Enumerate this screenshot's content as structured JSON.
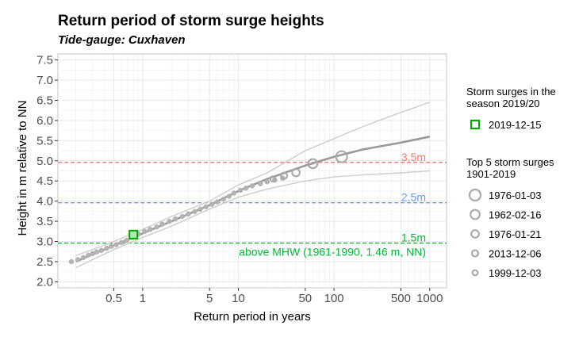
{
  "chart_data": {
    "type": "scatter",
    "title": "Return period of storm surge heights",
    "subtitle": "Tide-gauge: Cuxhaven",
    "xlabel": "Return period in years",
    "ylabel": "Height in m relative to NN",
    "xscale": "log",
    "xlim": [
      0.13,
      1500
    ],
    "ylim": [
      1.85,
      7.65
    ],
    "x_ticks": [
      0.5,
      1,
      5,
      10,
      50,
      100,
      500,
      1000
    ],
    "x_tick_labels": [
      "0.5",
      "1",
      "5",
      "10",
      "50",
      "100",
      "500",
      "1000"
    ],
    "x_minor_ticks": [
      0.2,
      0.3,
      0.4,
      0.6,
      0.7,
      0.8,
      0.9,
      2,
      3,
      4,
      6,
      7,
      8,
      9,
      20,
      30,
      40,
      60,
      70,
      80,
      90,
      200,
      300,
      400,
      600,
      700,
      800,
      900
    ],
    "y_ticks": [
      2.0,
      2.5,
      3.0,
      3.5,
      4.0,
      4.5,
      5.0,
      5.5,
      6.0,
      6.5,
      7.0,
      7.5
    ],
    "y_tick_labels": [
      "2.0",
      "2.5",
      "3.0",
      "3.5",
      "4.0",
      "4.5",
      "5.0",
      "5.5",
      "6.0",
      "6.5",
      "7.0",
      "7.5"
    ],
    "grid": true,
    "colors": {
      "fit": "#999999",
      "ci": "#cccccc",
      "points": "#b3b3b3",
      "top5": "#aaaaaa",
      "current": "#00aa00",
      "line_3_5": "#f8766d",
      "line_2_5": "#619cff",
      "line_1_5": "#00ba38",
      "panel": "#ffffff",
      "grid_major": "#ebebeb"
    },
    "reference_lines": [
      {
        "y": 4.96,
        "label": "3.5m",
        "color": "#f8766d"
      },
      {
        "y": 3.96,
        "label": "2.5m",
        "color": "#619cff"
      },
      {
        "y": 2.96,
        "label": "1.5m",
        "color": "#00ba38"
      }
    ],
    "annotation": "above MHW (1961-1990, 1.46 m, NN)",
    "series": [
      {
        "name": "fit",
        "x": [
          0.2,
          0.3,
          0.5,
          1,
          2,
          5,
          10,
          20,
          50,
          100,
          200,
          500,
          1000
        ],
        "y": [
          2.5,
          2.68,
          2.9,
          3.2,
          3.5,
          3.9,
          4.25,
          4.55,
          4.88,
          5.1,
          5.28,
          5.45,
          5.6
        ]
      },
      {
        "name": "ci_upper",
        "x": [
          0.2,
          0.3,
          0.5,
          1,
          2,
          5,
          10,
          20,
          50,
          100,
          200,
          500,
          1000
        ],
        "y": [
          2.65,
          2.8,
          3.0,
          3.3,
          3.62,
          4.0,
          4.4,
          4.7,
          5.25,
          5.55,
          5.85,
          6.2,
          6.45
        ]
      },
      {
        "name": "ci_lower",
        "x": [
          0.2,
          0.3,
          0.5,
          1,
          2,
          5,
          10,
          20,
          50,
          100,
          200,
          500,
          1000
        ],
        "y": [
          2.35,
          2.55,
          2.8,
          3.1,
          3.38,
          3.8,
          4.1,
          4.3,
          4.5,
          4.6,
          4.65,
          4.7,
          4.75
        ]
      }
    ],
    "points": {
      "x": [
        0.18,
        0.21,
        0.24,
        0.27,
        0.3,
        0.33,
        0.37,
        0.42,
        0.47,
        0.53,
        0.6,
        0.68,
        0.78,
        0.9,
        1.05,
        1.2,
        1.4,
        1.6,
        1.9,
        2.2,
        2.6,
        3.0,
        3.5,
        4.0,
        4.6,
        5.3,
        6.0,
        7.0,
        8.0,
        9.0,
        10.5,
        12,
        14,
        17,
        20,
        24,
        29
      ],
      "y": [
        2.5,
        2.55,
        2.6,
        2.66,
        2.7,
        2.74,
        2.78,
        2.83,
        2.88,
        2.92,
        2.97,
        3.03,
        3.1,
        3.18,
        3.25,
        3.3,
        3.36,
        3.43,
        3.5,
        3.56,
        3.62,
        3.68,
        3.74,
        3.8,
        3.86,
        3.92,
        3.98,
        4.05,
        4.12,
        4.2,
        4.27,
        4.32,
        4.38,
        4.43,
        4.48,
        4.52,
        4.57
      ]
    },
    "legend": {
      "current_title": "Storm surges in the season 2019/20",
      "current_entries": [
        {
          "date": "2019-12-15",
          "x": 0.8,
          "y": 3.17
        }
      ],
      "top5_title": "Top 5 storm surges 1901-2019",
      "top5_entries": [
        {
          "date": "1976-01-03",
          "x": 120,
          "y": 5.1
        },
        {
          "date": "1962-02-16",
          "x": 60,
          "y": 4.93
        },
        {
          "date": "1976-01-21",
          "x": 40,
          "y": 4.71
        },
        {
          "date": "2013-12-06",
          "x": 30,
          "y": 4.63
        },
        {
          "date": "1999-12-03",
          "x": 23,
          "y": 4.55
        }
      ]
    }
  }
}
